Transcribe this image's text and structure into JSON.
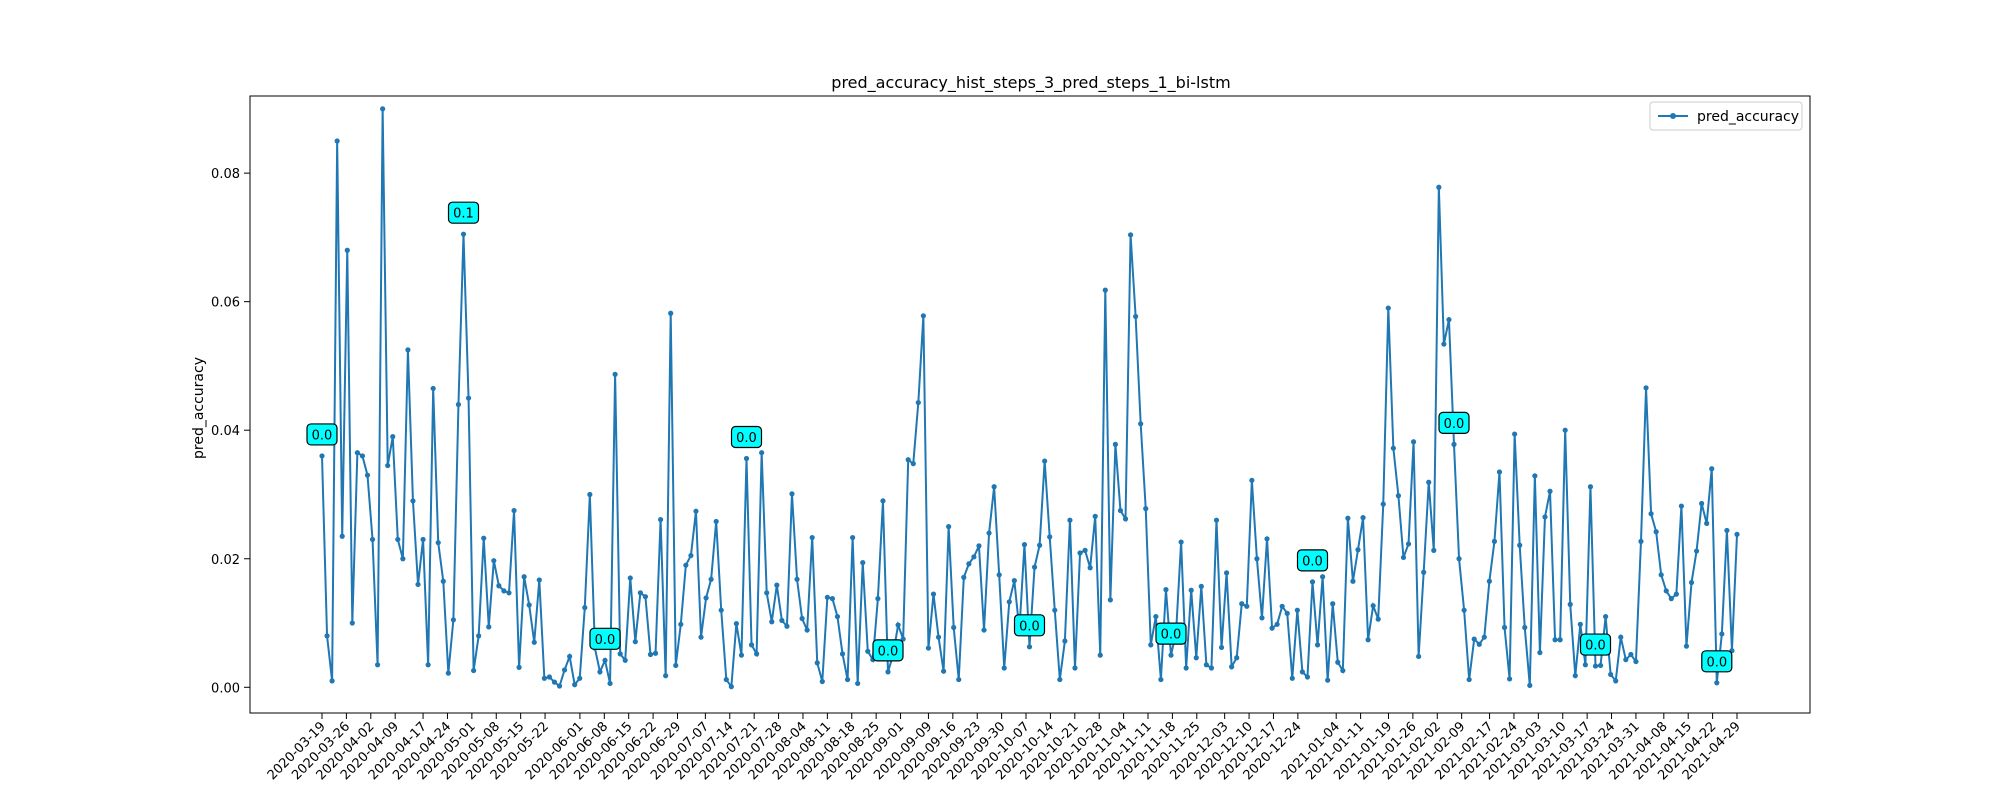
{
  "chart_data": {
    "type": "line",
    "title": "pred_accuracy_hist_steps_3_pred_steps_1_bi-lstm",
    "xlabel": "",
    "ylabel": "pred_accuracy",
    "ylim": [
      -0.004,
      0.092
    ],
    "yticks": [
      0.0,
      0.02,
      0.04,
      0.06,
      0.08
    ],
    "ytick_labels": [
      "0.00",
      "0.02",
      "0.04",
      "0.06",
      "0.08"
    ],
    "x_start_date": "2020-03-19",
    "x_end_date": "2021-04-29",
    "xtick_labels": [
      "2020-03-19",
      "2020-03-26",
      "2020-04-02",
      "2020-04-09",
      "2020-04-17",
      "2020-04-24",
      "2020-05-01",
      "2020-05-08",
      "2020-05-15",
      "2020-05-22",
      "2020-06-01",
      "2020-06-08",
      "2020-06-15",
      "2020-06-22",
      "2020-06-29",
      "2020-07-07",
      "2020-07-14",
      "2020-07-21",
      "2020-07-28",
      "2020-08-04",
      "2020-08-11",
      "2020-08-18",
      "2020-08-25",
      "2020-09-01",
      "2020-09-09",
      "2020-09-16",
      "2020-09-23",
      "2020-09-30",
      "2020-10-07",
      "2020-10-14",
      "2020-10-21",
      "2020-10-28",
      "2020-11-04",
      "2020-11-11",
      "2020-11-18",
      "2020-11-25",
      "2020-12-03",
      "2020-12-10",
      "2020-12-17",
      "2020-12-24",
      "2021-01-04",
      "2021-01-11",
      "2021-01-19",
      "2021-01-26",
      "2021-02-02",
      "2021-02-09",
      "2021-02-17",
      "2021-02-24",
      "2021-03-03",
      "2021-03-10",
      "2021-03-17",
      "2021-03-24",
      "2021-03-31",
      "2021-04-08",
      "2021-04-15",
      "2021-04-22",
      "2021-04-29"
    ],
    "series": [
      {
        "name": "pred_accuracy",
        "color": "#1f77b4",
        "values": [
          0.036,
          0.008,
          0.001,
          0.085,
          0.0235,
          0.068,
          0.01,
          0.0365,
          0.036,
          0.033,
          0.023,
          0.0035,
          0.09,
          0.0345,
          0.039,
          0.023,
          0.02,
          0.0525,
          0.029,
          0.016,
          0.023,
          0.0035,
          0.0465,
          0.0225,
          0.0165,
          0.0022,
          0.0105,
          0.044,
          0.0705,
          0.045,
          0.0026,
          0.008,
          0.0232,
          0.0094,
          0.0197,
          0.0158,
          0.015,
          0.0147,
          0.0275,
          0.0031,
          0.0172,
          0.0128,
          0.007,
          0.0167,
          0.0014,
          0.0016,
          0.0008,
          0.0002,
          0.0027,
          0.0048,
          0.0004,
          0.0014,
          0.0124,
          0.03,
          0.0061,
          0.0024,
          0.0042,
          0.0006,
          0.0487,
          0.0052,
          0.0042,
          0.017,
          0.0071,
          0.0147,
          0.0141,
          0.0051,
          0.0053,
          0.0261,
          0.0018,
          0.0582,
          0.0034,
          0.0098,
          0.019,
          0.0205,
          0.0274,
          0.0078,
          0.0139,
          0.0168,
          0.0258,
          0.012,
          0.0012,
          0.0001,
          0.0099,
          0.005,
          0.0356,
          0.0066,
          0.0052,
          0.0365,
          0.0147,
          0.0102,
          0.0159,
          0.0104,
          0.0095,
          0.0301,
          0.0168,
          0.0107,
          0.0089,
          0.0233,
          0.0038,
          0.0009,
          0.014,
          0.0138,
          0.011,
          0.0052,
          0.0012,
          0.0233,
          0.0006,
          0.0194,
          0.0056,
          0.0043,
          0.0138,
          0.029,
          0.0024,
          0.005,
          0.0097,
          0.0075,
          0.0354,
          0.0348,
          0.0443,
          0.0578,
          0.0061,
          0.0145,
          0.0078,
          0.0025,
          0.025,
          0.0093,
          0.0012,
          0.0171,
          0.0192,
          0.0203,
          0.022,
          0.0089,
          0.024,
          0.0312,
          0.0175,
          0.003,
          0.0133,
          0.0166,
          0.0089,
          0.0222,
          0.0063,
          0.0187,
          0.0221,
          0.0352,
          0.0234,
          0.012,
          0.0012,
          0.0072,
          0.026,
          0.003,
          0.0209,
          0.0213,
          0.0186,
          0.0266,
          0.005,
          0.0618,
          0.0136,
          0.0378,
          0.0275,
          0.0262,
          0.0704,
          0.0577,
          0.041,
          0.0278,
          0.0066,
          0.011,
          0.0012,
          0.0152,
          0.005,
          0.0085,
          0.0226,
          0.003,
          0.0151,
          0.0046,
          0.0157,
          0.0035,
          0.003,
          0.026,
          0.0062,
          0.0178,
          0.0032,
          0.0046,
          0.013,
          0.0126,
          0.0322,
          0.02,
          0.0108,
          0.0231,
          0.0092,
          0.0098,
          0.0126,
          0.0115,
          0.0014,
          0.012,
          0.0024,
          0.0016,
          0.0164,
          0.0066,
          0.0172,
          0.0011,
          0.013,
          0.0039,
          0.0026,
          0.0263,
          0.0165,
          0.0214,
          0.0264,
          0.0074,
          0.0127,
          0.0106,
          0.0285,
          0.059,
          0.0372,
          0.0298,
          0.0202,
          0.0223,
          0.0382,
          0.0048,
          0.0179,
          0.0319,
          0.0213,
          0.0778,
          0.0534,
          0.0572,
          0.0378,
          0.02,
          0.012,
          0.0012,
          0.0075,
          0.0067,
          0.0078,
          0.0165,
          0.0227,
          0.0335,
          0.0093,
          0.0013,
          0.0394,
          0.0221,
          0.0093,
          0.0003,
          0.0329,
          0.0054,
          0.0265,
          0.0305,
          0.0074,
          0.0074,
          0.04,
          0.0129,
          0.0018,
          0.0098,
          0.0035,
          0.0312,
          0.0033,
          0.0034,
          0.011,
          0.002,
          0.001,
          0.0078,
          0.0043,
          0.0051,
          0.004,
          0.0227,
          0.0466,
          0.027,
          0.0242,
          0.0175,
          0.015,
          0.0138,
          0.0145,
          0.0282,
          0.0064,
          0.0163,
          0.0212,
          0.0286,
          0.0255,
          0.034,
          0.0007,
          0.0083,
          0.0244,
          0.0057,
          0.0238
        ]
      }
    ],
    "annotations": [
      {
        "index": 0,
        "text": "0.0"
      },
      {
        "index": 28,
        "text": "0.1"
      },
      {
        "index": 56,
        "text": "0.0"
      },
      {
        "index": 84,
        "text": "0.0"
      },
      {
        "index": 112,
        "text": "0.0"
      },
      {
        "index": 140,
        "text": "0.0"
      },
      {
        "index": 168,
        "text": "0.0"
      },
      {
        "index": 196,
        "text": "0.0"
      },
      {
        "index": 224,
        "text": "0.0"
      },
      {
        "index": 252,
        "text": "0.0"
      },
      {
        "index": 276,
        "text": "0.0"
      }
    ],
    "annotation_color": "#00ffff",
    "legend": {
      "location": "top-right",
      "label": "pred_accuracy"
    },
    "grid": false
  }
}
